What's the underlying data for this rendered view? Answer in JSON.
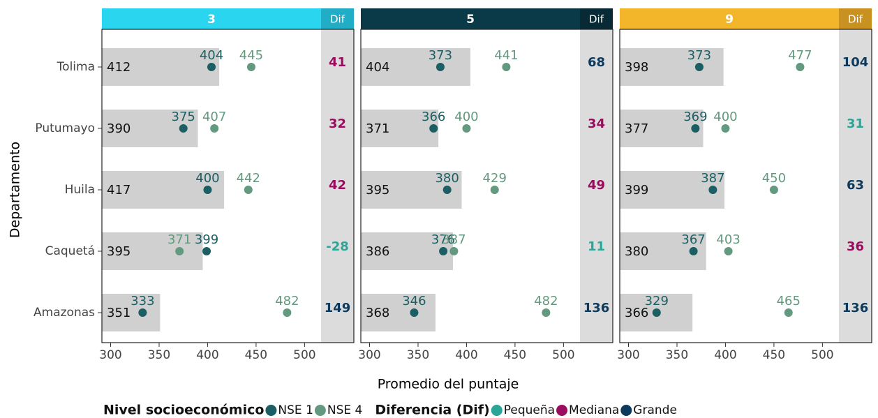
{
  "chart_data": {
    "type": "dot",
    "ylabel": "Departamento",
    "xlabel": "Promedio del puntaje",
    "categories": [
      "Tolima",
      "Putumayo",
      "Huila",
      "Caquetá",
      "Amazonas"
    ],
    "xlim": [
      291,
      517
    ],
    "xticks": [
      300,
      350,
      400,
      450,
      500
    ],
    "bar_color": "#d0d0d0",
    "dif_label": "Dif",
    "series": [
      {
        "name": "NSE 1",
        "color": "#1b5e63"
      },
      {
        "name": "NSE 4",
        "color": "#63997f"
      }
    ],
    "legend_title": "Nivel socioeconómico",
    "diff_title": "Diferencia (Dif)",
    "diff_levels": [
      {
        "name": "Pequeña",
        "color": "#2aa598"
      },
      {
        "name": "Mediana",
        "color": "#9b0b5e"
      },
      {
        "name": "Grande",
        "color": "#0d3a5c"
      }
    ],
    "panels": [
      {
        "title": "3",
        "color": "#2ad5ef",
        "dif_color": "#22adc6",
        "bars": [
          412,
          390,
          417,
          395,
          351
        ],
        "nse1": [
          404,
          375,
          400,
          399,
          333
        ],
        "nse4": [
          445,
          407,
          442,
          371,
          482
        ],
        "dif": [
          41,
          32,
          42,
          -28,
          149
        ],
        "dif_level": [
          1,
          1,
          1,
          0,
          2
        ]
      },
      {
        "title": "5",
        "color": "#0a3a48",
        "dif_color": "#072a34",
        "bars": [
          404,
          371,
          395,
          386,
          368
        ],
        "nse1": [
          373,
          366,
          380,
          376,
          346
        ],
        "nse4": [
          441,
          400,
          429,
          387,
          482
        ],
        "dif": [
          68,
          34,
          49,
          11,
          136
        ],
        "dif_level": [
          2,
          1,
          1,
          0,
          2
        ]
      },
      {
        "title": "9",
        "color": "#f3b52a",
        "dif_color": "#c9911f",
        "bars": [
          398,
          377,
          399,
          380,
          366
        ],
        "nse1": [
          373,
          369,
          387,
          367,
          329
        ],
        "nse4": [
          477,
          400,
          450,
          403,
          465
        ],
        "dif": [
          104,
          31,
          63,
          36,
          136
        ],
        "dif_level": [
          2,
          0,
          2,
          1,
          2
        ]
      }
    ]
  }
}
